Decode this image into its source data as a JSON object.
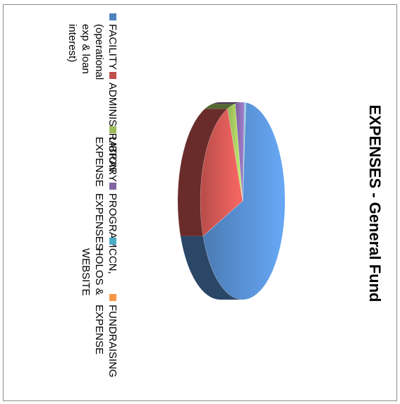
{
  "chart_data": {
    "type": "pie",
    "title": "EXPENSES - General Fund",
    "categories": [
      "FACILITY (operational exp & loan interest)",
      "ADMINISTRATION",
      "LIBRARY EXPENSE",
      "PROGRAM EXPENSES",
      "CCN, HOLOS & WEBSITE",
      "FUNDRAISING EXPENSE"
    ],
    "values": [
      68,
      25,
      3,
      3.5,
      0.4,
      0.1
    ],
    "colors": [
      "#4f81bd",
      "#c0504d",
      "#9bbb59",
      "#8064a2",
      "#4bacc6",
      "#f79646"
    ],
    "legend_position": "right",
    "style": "3d-pie"
  }
}
